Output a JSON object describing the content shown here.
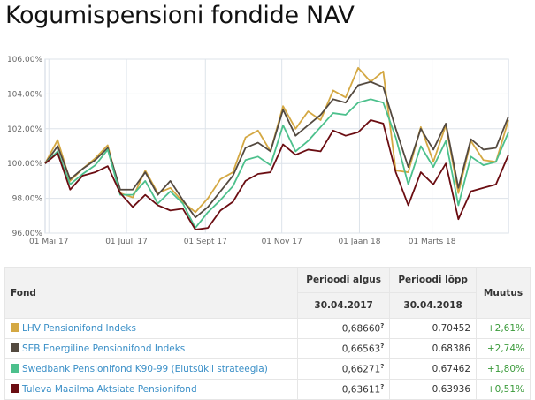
{
  "title": "Kogumispensioni fondide NAV",
  "chart_data": {
    "type": "line",
    "ylim": [
      96,
      106
    ],
    "yticks": [
      "96.00%",
      "98.00%",
      "100.00%",
      "102.00%",
      "104.00%",
      "106.00%"
    ],
    "ytick_values": [
      96,
      98,
      100,
      102,
      104,
      106
    ],
    "xticks": [
      {
        "label": "01 Mai 17",
        "index": 0.3
      },
      {
        "label": "01 Juuli 17",
        "index": 6.5
      },
      {
        "label": "01 Sept 17",
        "index": 12.8
      },
      {
        "label": "01 Nov 17",
        "index": 18.9
      },
      {
        "label": "01 Jaan 18",
        "index": 25.1
      },
      {
        "label": "01 Märts 18",
        "index": 30.9
      }
    ],
    "grid": true,
    "series": [
      {
        "name": "LHV Pensionifond Indeks",
        "color": "#d4a843",
        "values": [
          100,
          101.35,
          99.0,
          99.7,
          100.3,
          101.05,
          98.3,
          98.05,
          99.6,
          98.3,
          98.6,
          97.8,
          97.2,
          98.0,
          99.1,
          99.5,
          101.5,
          101.9,
          100.7,
          103.3,
          102.0,
          103.0,
          102.5,
          104.2,
          103.8,
          105.5,
          104.7,
          105.3,
          99.6,
          99.5,
          102.1,
          100.1,
          102.2,
          98.3,
          101.3,
          100.2,
          100.1,
          102.5
        ]
      },
      {
        "name": "SEB Energiline Pensionifond Indeks",
        "color": "#544a40",
        "values": [
          100,
          101.0,
          99.1,
          99.7,
          100.2,
          100.9,
          98.5,
          98.5,
          99.5,
          98.2,
          99.0,
          97.9,
          96.9,
          97.5,
          98.4,
          99.3,
          100.9,
          101.2,
          100.7,
          103.1,
          101.6,
          102.2,
          102.8,
          103.7,
          103.5,
          104.5,
          104.7,
          104.4,
          102.0,
          99.8,
          102.0,
          100.8,
          102.3,
          98.6,
          101.4,
          100.8,
          100.9,
          102.7
        ]
      },
      {
        "name": "Swedbank Pensionifond K90-99 (Elutsükli strateegia)",
        "color": "#4cc08c",
        "values": [
          100,
          100.7,
          98.8,
          99.4,
          99.9,
          100.8,
          98.2,
          98.2,
          99.0,
          97.7,
          98.4,
          97.7,
          96.3,
          97.2,
          97.9,
          98.7,
          100.2,
          100.4,
          99.9,
          102.2,
          100.7,
          101.3,
          102.1,
          102.9,
          102.8,
          103.5,
          103.7,
          103.5,
          101.5,
          98.8,
          101.0,
          99.8,
          101.3,
          97.6,
          100.4,
          99.9,
          100.1,
          101.8
        ]
      },
      {
        "name": "Tuleva Maailma Aktsiate Pensionifond",
        "color": "#6b0d12",
        "values": [
          100,
          100.6,
          98.5,
          99.3,
          99.5,
          99.85,
          98.3,
          97.5,
          98.2,
          97.6,
          97.3,
          97.4,
          96.2,
          96.3,
          97.3,
          97.8,
          99.0,
          99.4,
          99.5,
          101.1,
          100.5,
          100.8,
          100.7,
          101.9,
          101.6,
          101.8,
          102.5,
          102.3,
          99.5,
          97.6,
          99.5,
          98.8,
          100.0,
          96.8,
          98.4,
          98.6,
          98.8,
          100.5
        ]
      }
    ]
  },
  "table": {
    "headers": {
      "fond": "Fond",
      "start": "Perioodi algus",
      "end": "Perioodi lõpp",
      "change": "Muutus",
      "start_date": "30.04.2017",
      "end_date": "30.04.2018"
    },
    "rows": [
      {
        "name": "LHV Pensionifond Indeks",
        "color": "#d4a843",
        "start": "0,68660",
        "mark": "?",
        "end": "0,70452",
        "change": "+2,61%"
      },
      {
        "name": "SEB Energiline Pensionifond Indeks",
        "color": "#544a40",
        "start": "0,66563",
        "mark": "?",
        "end": "0,68386",
        "change": "+2,74%"
      },
      {
        "name": "Swedbank Pensionifond K90-99 (Elutsükli strateegia)",
        "color": "#4cc08c",
        "start": "0,66271",
        "mark": "?",
        "end": "0,67462",
        "change": "+1,80%"
      },
      {
        "name": "Tuleva Maailma Aktsiate Pensionifond",
        "color": "#6b0d12",
        "start": "0,63611",
        "mark": "?",
        "end": "0,63936",
        "change": "+0,51%"
      }
    ]
  }
}
